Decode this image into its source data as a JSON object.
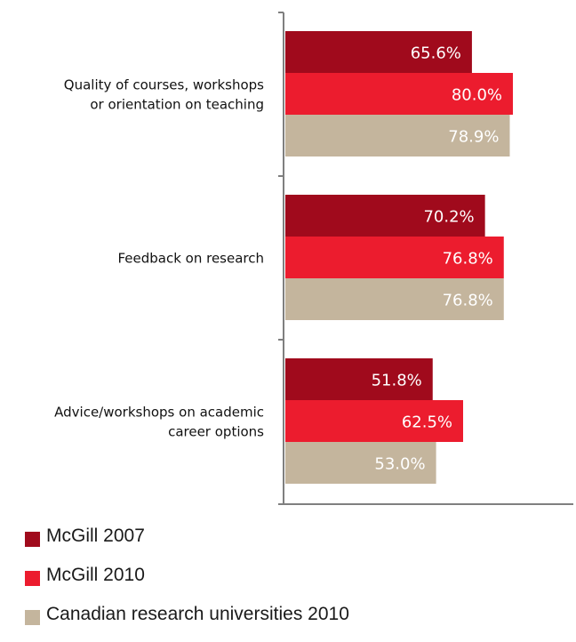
{
  "chart_data": {
    "type": "bar",
    "orientation": "horizontal",
    "categories": [
      [
        "Quality of courses, workshops",
        "or orientation on teaching"
      ],
      [
        "Feedback on research"
      ],
      [
        "Advice/workshops  on academic",
        "career options"
      ]
    ],
    "series": [
      {
        "name": "McGill 2007",
        "color": "#a00a1c",
        "values": [
          65.6,
          70.2,
          51.8
        ],
        "labels": [
          "65.6%",
          "70.2%",
          "51.8%"
        ]
      },
      {
        "name": "McGill 2010",
        "color": "#ec1c2e",
        "values": [
          80.0,
          76.8,
          62.5
        ],
        "labels": [
          "80.0%",
          "76.8%",
          "62.5%"
        ]
      },
      {
        "name": "Canadian research universities 2010",
        "color": "#c4b59d",
        "values": [
          78.9,
          76.8,
          53.0
        ],
        "labels": [
          "78.9%",
          "76.8%",
          "53.0%"
        ]
      }
    ],
    "xlim": [
      0,
      100
    ],
    "grid": false,
    "legend_position": "bottom-left"
  }
}
